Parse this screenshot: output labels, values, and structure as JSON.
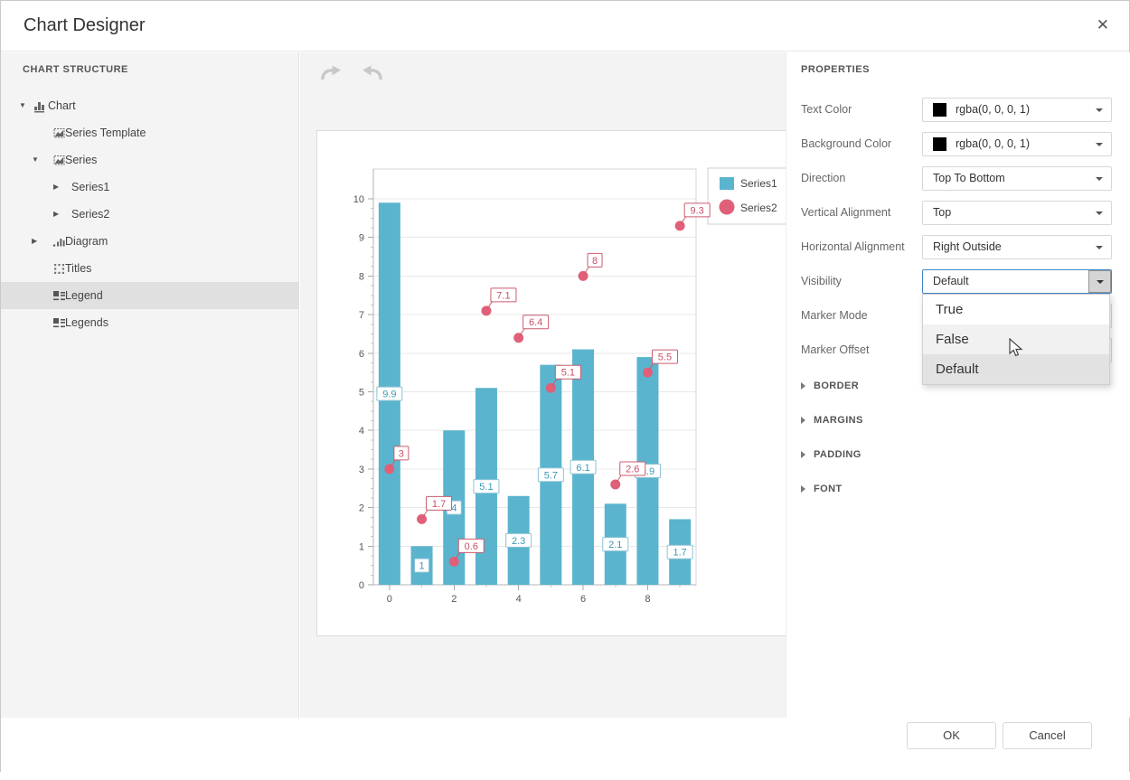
{
  "window": {
    "title": "Chart Designer",
    "close_glyph": "✕"
  },
  "left_panel": {
    "header": "CHART STRUCTURE",
    "tree": [
      {
        "label": "Chart",
        "level": 0,
        "expander": "expanded",
        "icon": "chart-icon",
        "selected": false
      },
      {
        "label": "Series Template",
        "level": 1,
        "expander": "none",
        "icon": "series-template-icon",
        "selected": false
      },
      {
        "label": "Series",
        "level": 1,
        "expander": "expanded",
        "icon": "series-icon",
        "selected": false
      },
      {
        "label": "Series1",
        "level": 2,
        "expander": "collapsed",
        "icon": "none",
        "selected": false
      },
      {
        "label": "Series2",
        "level": 2,
        "expander": "collapsed",
        "icon": "none",
        "selected": false
      },
      {
        "label": "Diagram",
        "level": 1,
        "expander": "collapsed",
        "icon": "diagram-icon",
        "selected": false
      },
      {
        "label": "Titles",
        "level": 1,
        "expander": "none",
        "icon": "titles-icon",
        "selected": false
      },
      {
        "label": "Legend",
        "level": 1,
        "expander": "none",
        "icon": "legend-icon",
        "selected": true
      },
      {
        "label": "Legends",
        "level": 1,
        "expander": "none",
        "icon": "legend-icon",
        "selected": false
      }
    ]
  },
  "chart_data": {
    "type": "bar",
    "categories": [
      0,
      1,
      2,
      3,
      4,
      5,
      6,
      7,
      8,
      9
    ],
    "series": [
      {
        "name": "Series1",
        "type": "bar",
        "color": "#5ab4cd",
        "label_text_color": "#3d99b4",
        "label_border_color": "#8cc3d6",
        "values": [
          9.9,
          1,
          4,
          5.1,
          2.3,
          5.7,
          6.1,
          2.1,
          5.9,
          1.7
        ]
      },
      {
        "name": "Series2",
        "type": "point",
        "color": "#e0607a",
        "label_text_color": "#cb4f66",
        "label_border_color": "#cb5b6e",
        "values": [
          3,
          1.7,
          0.6,
          7.1,
          6.4,
          5.1,
          8,
          2.6,
          5.5,
          9.3
        ]
      }
    ],
    "title": "",
    "xlabel": "",
    "ylabel": "",
    "ylim": [
      0,
      10.8
    ],
    "y_tick_labels": [
      "0",
      "1",
      "2",
      "3",
      "4",
      "5",
      "6",
      "7",
      "8",
      "9",
      "10"
    ],
    "x_major_tick_labels": [
      "0",
      "2",
      "4",
      "6",
      "8"
    ],
    "grid": true,
    "legend": {
      "position": "top-right-outside",
      "entries": [
        "Series1",
        "Series2"
      ]
    }
  },
  "properties_panel": {
    "header": "PROPERTIES",
    "rows": [
      {
        "label": "Text Color",
        "type": "color",
        "value": "rgba(0, 0, 0, 1)",
        "swatch": "#000000"
      },
      {
        "label": "Background Color",
        "type": "color",
        "value": "rgba(0, 0, 0, 1)",
        "swatch": "#000000"
      },
      {
        "label": "Direction",
        "type": "select",
        "value": "Top To Bottom"
      },
      {
        "label": "Vertical Alignment",
        "type": "select",
        "value": "Top"
      },
      {
        "label": "Horizontal Alignment",
        "type": "select",
        "value": "Right Outside"
      },
      {
        "label": "Visibility",
        "type": "select-open",
        "value": "Default"
      },
      {
        "label": "Marker Mode",
        "type": "select",
        "value": ""
      },
      {
        "label": "Marker Offset",
        "type": "select",
        "value": ""
      }
    ],
    "dropdown": {
      "options": [
        {
          "label": "True",
          "state": "normal"
        },
        {
          "label": "False",
          "state": "hover"
        },
        {
          "label": "Default",
          "state": "selected"
        }
      ]
    },
    "sections": [
      {
        "label": "BORDER"
      },
      {
        "label": "MARGINS"
      },
      {
        "label": "PADDING"
      },
      {
        "label": "FONT"
      }
    ]
  },
  "footer": {
    "ok_label": "OK",
    "cancel_label": "Cancel"
  }
}
